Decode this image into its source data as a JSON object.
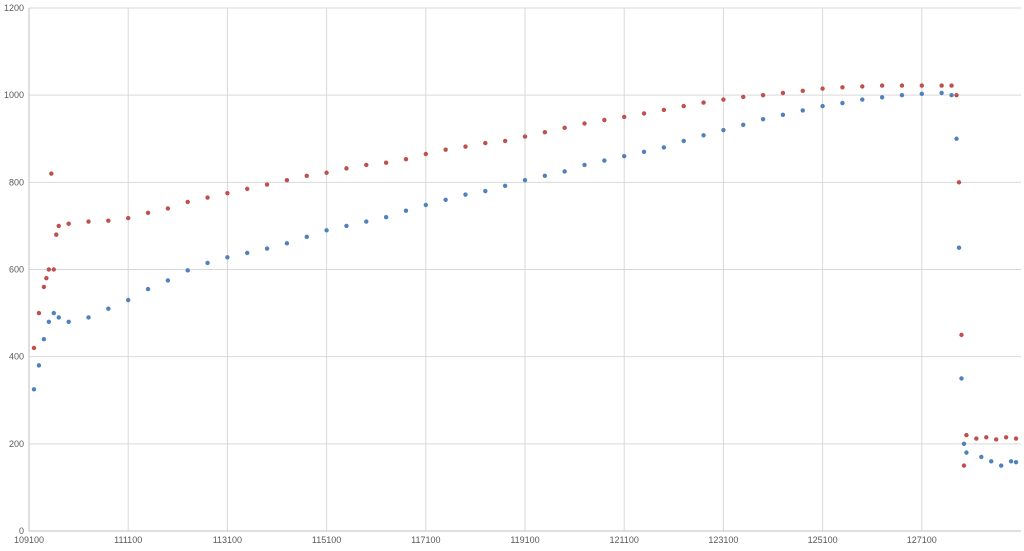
{
  "chart_data": {
    "type": "scatter",
    "title": "",
    "xlabel": "",
    "ylabel": "",
    "xlim": [
      109100,
      129100
    ],
    "ylim": [
      0,
      1200
    ],
    "grid": true,
    "legend": "none",
    "x_ticks": [
      {
        "value": 109100,
        "label": "109100"
      },
      {
        "value": 111100,
        "label": "111100"
      },
      {
        "value": 113100,
        "label": "113100"
      },
      {
        "value": 115100,
        "label": "115100"
      },
      {
        "value": 117100,
        "label": "117100"
      },
      {
        "value": 119100,
        "label": "119100"
      },
      {
        "value": 121100,
        "label": "121100"
      },
      {
        "value": 123100,
        "label": "123100"
      },
      {
        "value": 125100,
        "label": "125100"
      },
      {
        "value": 127100,
        "label": "127100"
      }
    ],
    "y_ticks": [
      {
        "value": 0,
        "label": "0"
      },
      {
        "value": 200,
        "label": "200"
      },
      {
        "value": 400,
        "label": "400"
      },
      {
        "value": 600,
        "label": "600"
      },
      {
        "value": 800,
        "label": "800"
      },
      {
        "value": 1000,
        "label": "1000"
      },
      {
        "value": 1200,
        "label": "1200"
      }
    ],
    "series": [
      {
        "color": "#c0504d",
        "points": [
          [
            109200,
            420
          ],
          [
            109300,
            500
          ],
          [
            109400,
            560
          ],
          [
            109450,
            580
          ],
          [
            109500,
            600
          ],
          [
            109550,
            820
          ],
          [
            109600,
            600
          ],
          [
            109650,
            680
          ],
          [
            109700,
            700
          ],
          [
            109900,
            705
          ],
          [
            110300,
            710
          ],
          [
            110700,
            712
          ],
          [
            111100,
            718
          ],
          [
            111500,
            730
          ],
          [
            111900,
            740
          ],
          [
            112300,
            755
          ],
          [
            112700,
            765
          ],
          [
            113100,
            775
          ],
          [
            113500,
            785
          ],
          [
            113900,
            795
          ],
          [
            114300,
            805
          ],
          [
            114700,
            815
          ],
          [
            115100,
            822
          ],
          [
            115500,
            832
          ],
          [
            115900,
            840
          ],
          [
            116300,
            845
          ],
          [
            116700,
            853
          ],
          [
            117100,
            865
          ],
          [
            117500,
            875
          ],
          [
            117900,
            882
          ],
          [
            118300,
            890
          ],
          [
            118700,
            895
          ],
          [
            119100,
            905
          ],
          [
            119500,
            915
          ],
          [
            119900,
            925
          ],
          [
            120300,
            935
          ],
          [
            120700,
            943
          ],
          [
            121100,
            950
          ],
          [
            121500,
            958
          ],
          [
            121900,
            966
          ],
          [
            122300,
            975
          ],
          [
            122700,
            983
          ],
          [
            123100,
            990
          ],
          [
            123500,
            996
          ],
          [
            123900,
            1000
          ],
          [
            124300,
            1005
          ],
          [
            124700,
            1010
          ],
          [
            125100,
            1015
          ],
          [
            125500,
            1018
          ],
          [
            125900,
            1020
          ],
          [
            126300,
            1022
          ],
          [
            126700,
            1022
          ],
          [
            127100,
            1022
          ],
          [
            127500,
            1022
          ],
          [
            127700,
            1022
          ],
          [
            127800,
            1000
          ],
          [
            127850,
            800
          ],
          [
            127900,
            450
          ],
          [
            127950,
            150
          ],
          [
            128000,
            220
          ],
          [
            128200,
            212
          ],
          [
            128400,
            215
          ],
          [
            128600,
            210
          ],
          [
            128800,
            215
          ],
          [
            129000,
            212
          ]
        ]
      },
      {
        "color": "#4f81bd",
        "points": [
          [
            109200,
            325
          ],
          [
            109300,
            380
          ],
          [
            109400,
            440
          ],
          [
            109500,
            480
          ],
          [
            109600,
            500
          ],
          [
            109700,
            490
          ],
          [
            109900,
            480
          ],
          [
            110300,
            490
          ],
          [
            110700,
            510
          ],
          [
            111100,
            530
          ],
          [
            111500,
            555
          ],
          [
            111900,
            575
          ],
          [
            112300,
            598
          ],
          [
            112700,
            615
          ],
          [
            113100,
            628
          ],
          [
            113500,
            638
          ],
          [
            113900,
            648
          ],
          [
            114300,
            660
          ],
          [
            114700,
            675
          ],
          [
            115100,
            690
          ],
          [
            115500,
            700
          ],
          [
            115900,
            710
          ],
          [
            116300,
            720
          ],
          [
            116700,
            735
          ],
          [
            117100,
            748
          ],
          [
            117500,
            760
          ],
          [
            117900,
            772
          ],
          [
            118300,
            780
          ],
          [
            118700,
            792
          ],
          [
            119100,
            805
          ],
          [
            119500,
            815
          ],
          [
            119900,
            825
          ],
          [
            120300,
            840
          ],
          [
            120700,
            850
          ],
          [
            121100,
            860
          ],
          [
            121500,
            870
          ],
          [
            121900,
            880
          ],
          [
            122300,
            895
          ],
          [
            122700,
            908
          ],
          [
            123100,
            920
          ],
          [
            123500,
            932
          ],
          [
            123900,
            945
          ],
          [
            124300,
            955
          ],
          [
            124700,
            965
          ],
          [
            125100,
            975
          ],
          [
            125500,
            982
          ],
          [
            125900,
            990
          ],
          [
            126300,
            995
          ],
          [
            126700,
            1000
          ],
          [
            127100,
            1003
          ],
          [
            127500,
            1005
          ],
          [
            127700,
            1000
          ],
          [
            127800,
            900
          ],
          [
            127850,
            650
          ],
          [
            127900,
            350
          ],
          [
            127950,
            200
          ],
          [
            128000,
            180
          ],
          [
            128300,
            170
          ],
          [
            128500,
            160
          ],
          [
            128700,
            150
          ],
          [
            128900,
            160
          ],
          [
            129000,
            158
          ]
        ]
      }
    ]
  }
}
